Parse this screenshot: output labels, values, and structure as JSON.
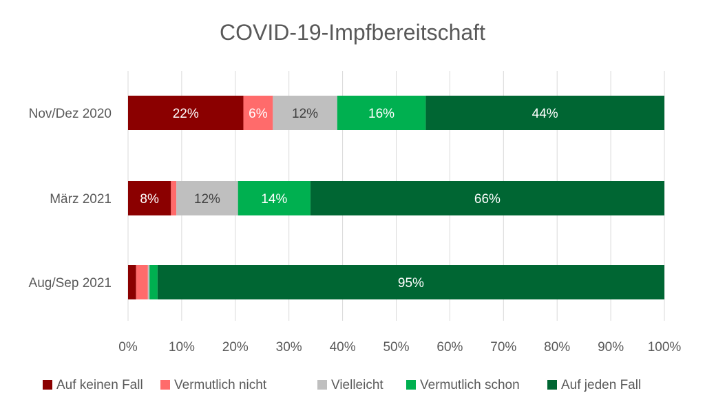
{
  "chart_data": {
    "type": "bar",
    "orientation": "horizontal",
    "stacked": true,
    "title": "COVID-19-Impfbereitschaft",
    "categories": [
      "Nov/Dez 2020",
      "März 2021",
      "Aug/Sep 2021"
    ],
    "series": [
      {
        "name": "Auf keinen Fall",
        "color": "#8B0000",
        "values": [
          21.5,
          8,
          1.5
        ],
        "labels": [
          "22%",
          "8%",
          ""
        ]
      },
      {
        "name": "Vermutlich nicht",
        "color": "#FF6B6B",
        "values": [
          5.5,
          1,
          2.2
        ],
        "labels": [
          "6%",
          "",
          ""
        ]
      },
      {
        "name": "Vielleicht",
        "color": "#BFBFBF",
        "values": [
          12,
          11.5,
          0.3
        ],
        "labels": [
          "12%",
          "12%",
          ""
        ]
      },
      {
        "name": "Vermutlich schon",
        "color": "#00B050",
        "values": [
          16.5,
          13.5,
          1.5
        ],
        "labels": [
          "16%",
          "14%",
          ""
        ]
      },
      {
        "name": "Auf jeden Fall",
        "color": "#006633",
        "values": [
          44.5,
          66,
          94.5
        ],
        "labels": [
          "44%",
          "66%",
          "95%"
        ]
      }
    ],
    "xlim": [
      0,
      100
    ],
    "xticks": [
      "0%",
      "10%",
      "20%",
      "30%",
      "40%",
      "50%",
      "60%",
      "70%",
      "80%",
      "90%",
      "100%"
    ],
    "grid": "vertical",
    "legend": "bottom",
    "label_colors": {
      "light": "#ffffff",
      "dark": "#404040"
    }
  }
}
